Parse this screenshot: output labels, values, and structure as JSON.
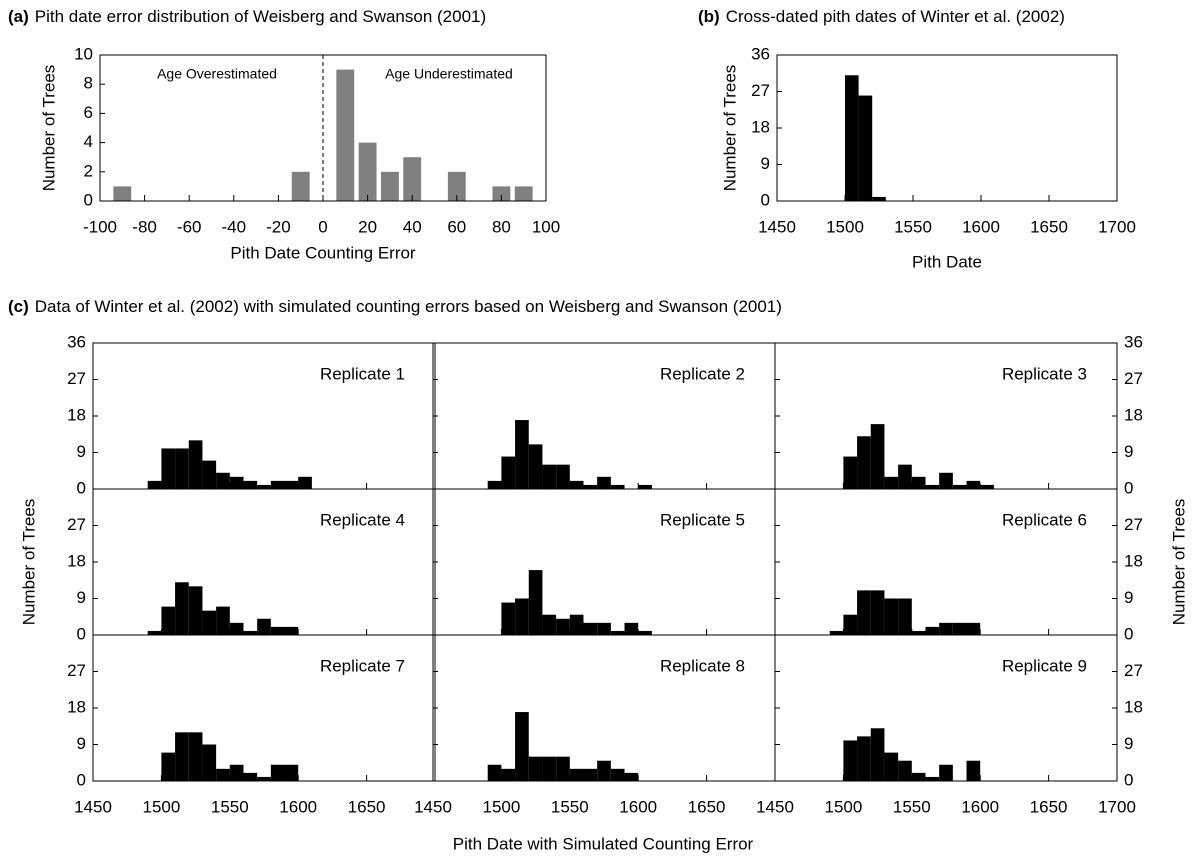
{
  "chart_data": [
    {
      "type": "bar",
      "label": "(a)",
      "title": "Pith date error distribution of Weisberg and Swanson (2001)",
      "xlabel": "Pith Date Counting Error",
      "ylabel": "Number of Trees",
      "x": [
        -90,
        -10,
        10,
        20,
        30,
        40,
        60,
        80,
        90
      ],
      "values": [
        1,
        2,
        9,
        4,
        2,
        3,
        2,
        1,
        1
      ],
      "color": "#808080",
      "xlim": [
        -100,
        100
      ],
      "ylim": [
        0,
        10
      ],
      "xticks": [
        -100,
        -80,
        -60,
        -40,
        -20,
        0,
        20,
        40,
        60,
        80,
        100
      ],
      "yticks": [
        0,
        2,
        4,
        6,
        8,
        10
      ],
      "vline": 0,
      "annotations": [
        "Age Overestimated",
        "Age Underestimated"
      ]
    },
    {
      "type": "histogram",
      "label": "(b)",
      "title": "Cross-dated pith dates of Winter et al. (2002)",
      "xlabel": "Pith Date",
      "ylabel": "Number of Trees",
      "bins": [
        1500,
        1510,
        1520,
        1530
      ],
      "counts": [
        31,
        26,
        1
      ],
      "color": "#000000",
      "xlim": [
        1450,
        1700
      ],
      "ylim": [
        0,
        36
      ],
      "xticks": [
        1450,
        1500,
        1550,
        1600,
        1650,
        1700
      ],
      "yticks": [
        0,
        9,
        18,
        27,
        36
      ]
    },
    {
      "type": "histogram",
      "title": "Replicate 1",
      "bins": [
        1490,
        1500,
        1510,
        1520,
        1530,
        1540,
        1550,
        1560,
        1570,
        1580,
        1590,
        1600,
        1610
      ],
      "counts": [
        2,
        10,
        10,
        12,
        7,
        4,
        3,
        2,
        1,
        2,
        2,
        3
      ],
      "color": "#000000",
      "xlim": [
        1450,
        1700
      ],
      "ylim": [
        0,
        36
      ],
      "xticks": [
        1450,
        1500,
        1550,
        1600,
        1650
      ],
      "yticks": [
        0,
        9,
        18,
        27,
        36
      ]
    },
    {
      "type": "histogram",
      "title": "Replicate 2",
      "bins": [
        1490,
        1500,
        1510,
        1520,
        1530,
        1540,
        1550,
        1560,
        1570,
        1580,
        1590,
        1600,
        1610
      ],
      "counts": [
        2,
        8,
        17,
        11,
        6,
        6,
        2,
        1,
        3,
        1,
        0,
        1
      ],
      "color": "#000000",
      "xlim": [
        1450,
        1700
      ],
      "ylim": [
        0,
        36
      ],
      "xticks": [
        1450,
        1500,
        1550,
        1600,
        1650
      ],
      "yticks": [
        0,
        9,
        18,
        27,
        36
      ]
    },
    {
      "type": "histogram",
      "title": "Replicate 3",
      "bins": [
        1500,
        1510,
        1520,
        1530,
        1540,
        1550,
        1560,
        1570,
        1580,
        1590,
        1600,
        1610
      ],
      "counts": [
        8,
        13,
        16,
        3,
        6,
        3,
        1,
        4,
        1,
        2,
        1
      ],
      "color": "#000000",
      "xlim": [
        1450,
        1700
      ],
      "ylim": [
        0,
        36
      ],
      "xticks": [
        1450,
        1500,
        1550,
        1600,
        1650,
        1700
      ],
      "yticks": [
        0,
        9,
        18,
        27,
        36
      ]
    },
    {
      "type": "histogram",
      "title": "Replicate 4",
      "bins": [
        1490,
        1500,
        1510,
        1520,
        1530,
        1540,
        1550,
        1560,
        1570,
        1580,
        1590,
        1600
      ],
      "counts": [
        1,
        7,
        13,
        12,
        6,
        7,
        3,
        1,
        4,
        2,
        2
      ],
      "color": "#000000",
      "xlim": [
        1450,
        1700
      ],
      "ylim": [
        0,
        36
      ],
      "xticks": [
        1450,
        1500,
        1550,
        1600,
        1650
      ],
      "yticks": [
        0,
        9,
        18,
        27
      ]
    },
    {
      "type": "histogram",
      "title": "Replicate 5",
      "bins": [
        1500,
        1510,
        1520,
        1530,
        1540,
        1550,
        1560,
        1570,
        1580,
        1590,
        1600,
        1610
      ],
      "counts": [
        8,
        9,
        16,
        5,
        4,
        5,
        3,
        3,
        1,
        3,
        1
      ],
      "color": "#000000",
      "xlim": [
        1450,
        1700
      ],
      "ylim": [
        0,
        36
      ],
      "xticks": [
        1450,
        1500,
        1550,
        1600,
        1650
      ],
      "yticks": [
        0,
        9,
        18,
        27
      ]
    },
    {
      "type": "histogram",
      "title": "Replicate 6",
      "bins": [
        1490,
        1500,
        1510,
        1520,
        1530,
        1540,
        1550,
        1560,
        1570,
        1580,
        1590,
        1600
      ],
      "counts": [
        1,
        5,
        11,
        11,
        9,
        9,
        1,
        2,
        3,
        3,
        3
      ],
      "color": "#000000",
      "xlim": [
        1450,
        1700
      ],
      "ylim": [
        0,
        36
      ],
      "xticks": [
        1450,
        1500,
        1550,
        1600,
        1650,
        1700
      ],
      "yticks": [
        0,
        9,
        18,
        27
      ]
    },
    {
      "type": "histogram",
      "title": "Replicate 7",
      "bins": [
        1500,
        1510,
        1520,
        1530,
        1540,
        1550,
        1560,
        1570,
        1580,
        1590,
        1600
      ],
      "counts": [
        7,
        12,
        12,
        9,
        3,
        4,
        2,
        1,
        4,
        4
      ],
      "color": "#000000",
      "xlim": [
        1450,
        1700
      ],
      "ylim": [
        0,
        36
      ],
      "xticks": [
        1450,
        1500,
        1550,
        1600,
        1650
      ],
      "yticks": [
        0,
        9,
        18,
        27
      ]
    },
    {
      "type": "histogram",
      "title": "Replicate 8",
      "bins": [
        1490,
        1500,
        1510,
        1520,
        1530,
        1540,
        1550,
        1560,
        1570,
        1580,
        1590,
        1600
      ],
      "counts": [
        4,
        3,
        17,
        6,
        6,
        6,
        3,
        3,
        5,
        3,
        2
      ],
      "color": "#000000",
      "xlim": [
        1450,
        1700
      ],
      "ylim": [
        0,
        36
      ],
      "xticks": [
        1450,
        1500,
        1550,
        1600,
        1650
      ],
      "yticks": [
        0,
        9,
        18,
        27
      ]
    },
    {
      "type": "histogram",
      "title": "Replicate 9",
      "bins": [
        1500,
        1510,
        1520,
        1530,
        1540,
        1550,
        1560,
        1570,
        1580,
        1590,
        1600
      ],
      "counts": [
        10,
        11,
        13,
        7,
        5,
        2,
        1,
        4,
        0,
        5
      ],
      "color": "#000000",
      "xlim": [
        1450,
        1700
      ],
      "ylim": [
        0,
        36
      ],
      "xticks": [
        1450,
        1500,
        1550,
        1600,
        1650,
        1700
      ],
      "yticks": [
        0,
        9,
        18,
        27
      ]
    }
  ],
  "panel_c": {
    "label": "(c)",
    "title": "Data of Winter et al. (2002) with simulated counting errors based on Weisberg and Swanson (2001)",
    "xlabel": "Pith Date with Simulated Counting Error",
    "ylabel": "Number of Trees",
    "y2label": "Number of Trees"
  }
}
